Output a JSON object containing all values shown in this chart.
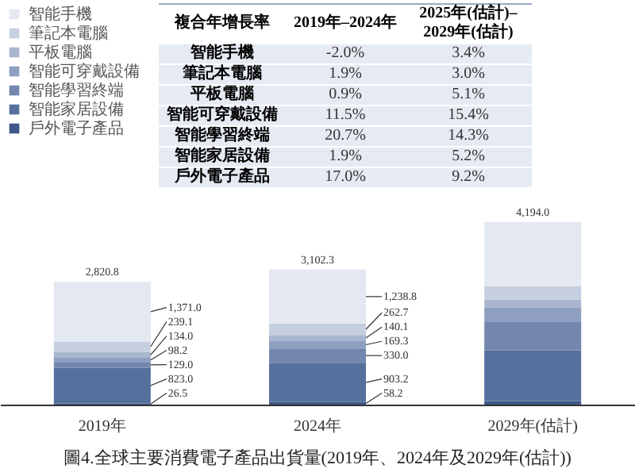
{
  "chart_data": [
    {
      "type": "bar",
      "stacked": true,
      "title": "圖4.全球主要消費電子產品出貨量(2019年、2024年及2029年(估計))",
      "categories": [
        "2019年",
        "2024年",
        "2029年(估計)"
      ],
      "legend": "top left",
      "totals": [
        "2,820.8",
        "3,102.3",
        "4,194.0"
      ],
      "series": [
        {
          "name": "戶外電子產品",
          "color": "#3f5889",
          "values": [
            26.5,
            58.2,
            80
          ],
          "value_labels": [
            "26.5",
            "58.2",
            null
          ]
        },
        {
          "name": "智能家居設備",
          "color": "#56709d",
          "values": [
            823.0,
            903.2,
            1170
          ],
          "value_labels": [
            "823.0",
            "903.2",
            null
          ]
        },
        {
          "name": "智能學習終端",
          "color": "#7286ae",
          "values": [
            129.0,
            330.0,
            645
          ],
          "value_labels": [
            "129.0",
            "330.0",
            null
          ]
        },
        {
          "name": "智能可穿戴設備",
          "color": "#8e9fc0",
          "values": [
            98.2,
            169.3,
            345
          ],
          "value_labels": [
            "98.2",
            "169.3",
            null
          ]
        },
        {
          "name": "平板電腦",
          "color": "#aab6cf",
          "values": [
            134.0,
            140.1,
            170
          ],
          "value_labels": [
            "134.0",
            "140.1",
            null
          ]
        },
        {
          "name": "筆記本電腦",
          "color": "#c6cfdf",
          "values": [
            239.1,
            262.7,
            310
          ],
          "value_labels": [
            "239.1",
            "262.7",
            null
          ]
        },
        {
          "name": "智能手機",
          "color": "#e3e8f1",
          "values": [
            1371.0,
            1238.8,
            1474
          ],
          "value_labels": [
            "1,371.0",
            "1,238.8",
            null
          ]
        }
      ]
    },
    {
      "type": "other",
      "title": "複合年增長率",
      "categories": [
        "智能手機",
        "筆記本電腦",
        "平板電腦",
        "智能可穿戴設備",
        "智能學習終端",
        "智能家居設備",
        "戶外電子產品"
      ],
      "series": [
        {
          "name": "2019年–2024年",
          "values": [
            -2.0,
            1.9,
            0.9,
            11.5,
            20.7,
            1.9,
            17.0
          ],
          "value_labels": [
            "-2.0%",
            "1.9%",
            "0.9%",
            "11.5%",
            "20.7%",
            "1.9%",
            "17.0%"
          ]
        },
        {
          "name": "2025年(估計)–2029年(估計)",
          "values": [
            3.4,
            3.0,
            5.1,
            15.4,
            14.3,
            5.2,
            9.2
          ],
          "value_labels": [
            "3.4%",
            "3.0%",
            "5.1%",
            "15.4%",
            "14.3%",
            "5.2%",
            "9.2%"
          ]
        }
      ]
    }
  ]
}
